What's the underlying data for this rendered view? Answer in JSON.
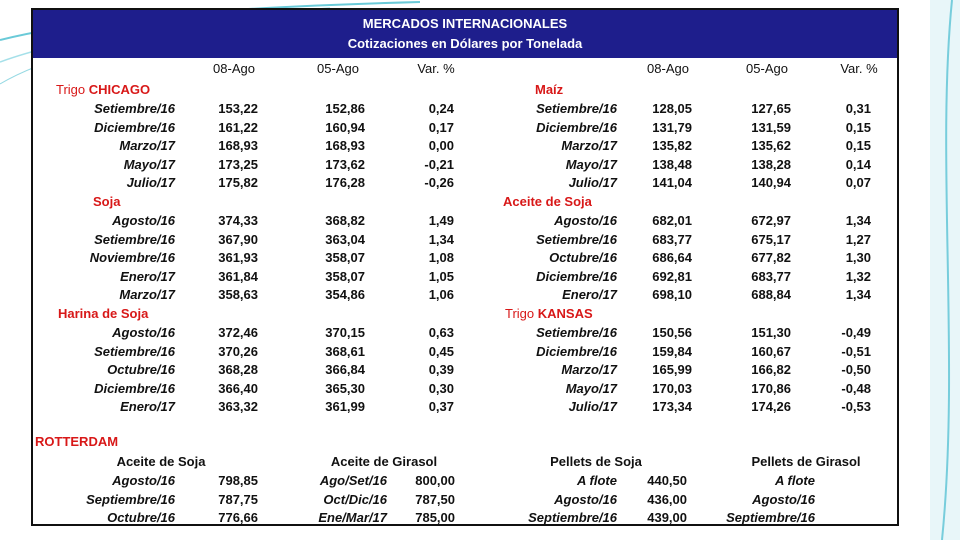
{
  "header": {
    "title": "MERCADOS INTERNACIONALES",
    "subtitle": "Cotizaciones en Dólares por Tonelada"
  },
  "columns": {
    "left": [
      "08-Ago",
      "05-Ago",
      "Var. %"
    ],
    "right": [
      "08-Ago",
      "05-Ago",
      "Var. %"
    ]
  },
  "sections": {
    "trigo_chicago": {
      "prefix": "Trigo",
      "name": "CHICAGO",
      "rows": [
        {
          "label": "Setiembre/16",
          "v1": "153,22",
          "v2": "152,86",
          "var": "0,24"
        },
        {
          "label": "Diciembre/16",
          "v1": "161,22",
          "v2": "160,94",
          "var": "0,17"
        },
        {
          "label": "Marzo/17",
          "v1": "168,93",
          "v2": "168,93",
          "var": "0,00"
        },
        {
          "label": "Mayo/17",
          "v1": "173,25",
          "v2": "173,62",
          "var": "-0,21"
        },
        {
          "label": "Julio/17",
          "v1": "175,82",
          "v2": "176,28",
          "var": "-0,26"
        }
      ]
    },
    "maiz": {
      "name": "Maíz",
      "rows": [
        {
          "label": "Setiembre/16",
          "v1": "128,05",
          "v2": "127,65",
          "var": "0,31"
        },
        {
          "label": "Diciembre/16",
          "v1": "131,79",
          "v2": "131,59",
          "var": "0,15"
        },
        {
          "label": "Marzo/17",
          "v1": "135,82",
          "v2": "135,62",
          "var": "0,15"
        },
        {
          "label": "Mayo/17",
          "v1": "138,48",
          "v2": "138,28",
          "var": "0,14"
        },
        {
          "label": "Julio/17",
          "v1": "141,04",
          "v2": "140,94",
          "var": "0,07"
        }
      ]
    },
    "soja": {
      "name": "Soja",
      "rows": [
        {
          "label": "Agosto/16",
          "v1": "374,33",
          "v2": "368,82",
          "var": "1,49"
        },
        {
          "label": "Setiembre/16",
          "v1": "367,90",
          "v2": "363,04",
          "var": "1,34"
        },
        {
          "label": "Noviembre/16",
          "v1": "361,93",
          "v2": "358,07",
          "var": "1,08"
        },
        {
          "label": "Enero/17",
          "v1": "361,84",
          "v2": "358,07",
          "var": "1,05"
        },
        {
          "label": "Marzo/17",
          "v1": "358,63",
          "v2": "354,86",
          "var": "1,06"
        }
      ]
    },
    "aceite_soja": {
      "name": "Aceite de Soja",
      "rows": [
        {
          "label": "Agosto/16",
          "v1": "682,01",
          "v2": "672,97",
          "var": "1,34"
        },
        {
          "label": "Setiembre/16",
          "v1": "683,77",
          "v2": "675,17",
          "var": "1,27"
        },
        {
          "label": "Octubre/16",
          "v1": "686,64",
          "v2": "677,82",
          "var": "1,30"
        },
        {
          "label": "Diciembre/16",
          "v1": "692,81",
          "v2": "683,77",
          "var": "1,32"
        },
        {
          "label": "Enero/17",
          "v1": "698,10",
          "v2": "688,84",
          "var": "1,34"
        }
      ]
    },
    "harina_soja": {
      "name": "Harina de Soja",
      "rows": [
        {
          "label": "Agosto/16",
          "v1": "372,46",
          "v2": "370,15",
          "var": "0,63"
        },
        {
          "label": "Setiembre/16",
          "v1": "370,26",
          "v2": "368,61",
          "var": "0,45"
        },
        {
          "label": "Octubre/16",
          "v1": "368,28",
          "v2": "366,84",
          "var": "0,39"
        },
        {
          "label": "Diciembre/16",
          "v1": "366,40",
          "v2": "365,30",
          "var": "0,30"
        },
        {
          "label": "Enero/17",
          "v1": "363,32",
          "v2": "361,99",
          "var": "0,37"
        }
      ]
    },
    "trigo_kansas": {
      "prefix": "Trigo",
      "name": "KANSAS",
      "rows": [
        {
          "label": "Setiembre/16",
          "v1": "150,56",
          "v2": "151,30",
          "var": "-0,49"
        },
        {
          "label": "Diciembre/16",
          "v1": "159,84",
          "v2": "160,67",
          "var": "-0,51"
        },
        {
          "label": "Marzo/17",
          "v1": "165,99",
          "v2": "166,82",
          "var": "-0,50"
        },
        {
          "label": "Mayo/17",
          "v1": "170,03",
          "v2": "170,86",
          "var": "-0,48"
        },
        {
          "label": "Julio/17",
          "v1": "173,34",
          "v2": "174,26",
          "var": "-0,53"
        }
      ]
    }
  },
  "rotterdam": {
    "title": "ROTTERDAM",
    "groups": [
      {
        "name": "Aceite de Soja",
        "rows": [
          {
            "label": "Agosto/16",
            "value": "798,85"
          },
          {
            "label": "Septiembre/16",
            "value": "787,75"
          },
          {
            "label": "Octubre/16",
            "value": "776,66"
          }
        ]
      },
      {
        "name": "Aceite de Girasol",
        "rows": [
          {
            "label": "Ago/Set/16",
            "value": "800,00"
          },
          {
            "label": "Oct/Dic/16",
            "value": "787,50"
          },
          {
            "label": "Ene/Mar/17",
            "value": "785,00"
          }
        ]
      },
      {
        "name": "Pellets de Soja",
        "rows": [
          {
            "label": "A flote",
            "value": "440,50"
          },
          {
            "label": "Agosto/16",
            "value": "436,00"
          },
          {
            "label": "Septiembre/16",
            "value": "439,00"
          }
        ]
      },
      {
        "name": "Pellets de Girasol",
        "rows": [
          {
            "label": "A flote",
            "value": ""
          },
          {
            "label": "Agosto/16",
            "value": ""
          },
          {
            "label": "Septiembre/16",
            "value": ""
          }
        ]
      }
    ]
  },
  "colors": {
    "header_bg": "#1e1e8c",
    "section_red": "#d81818",
    "accent_teal": "#2bb3c8"
  }
}
